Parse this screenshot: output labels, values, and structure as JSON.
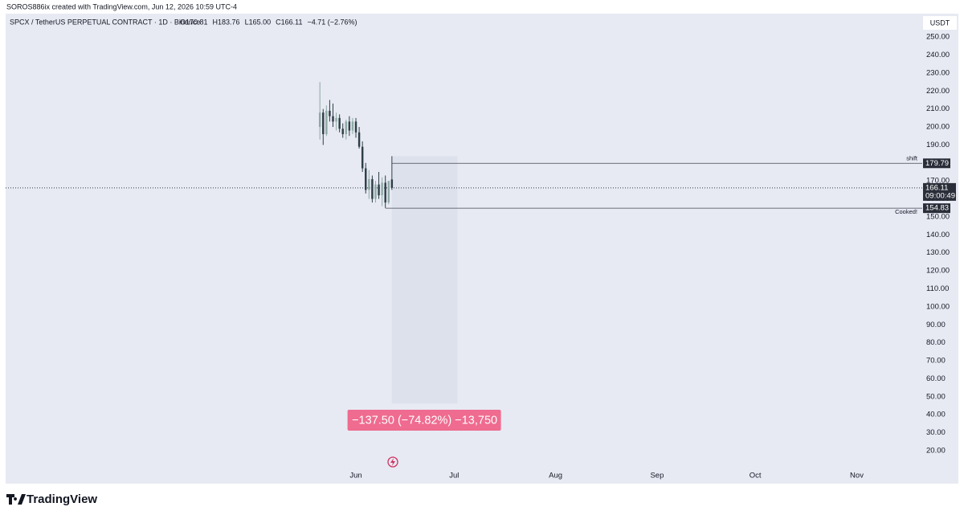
{
  "header": "SOROS886ix created with TradingView.com, Jun 12, 2026 10:59 UTC-4",
  "footer": "TradingView",
  "chart_data": {
    "type": "candlestick",
    "title": "SPCX / TetherUS PERPETUAL CONTRACT · 1D · Binance",
    "legend_ohlc": [
      "O170.81",
      "H183.76",
      "L165.00",
      "C166.11",
      "−4.71 (−2.76%)"
    ],
    "currency": "USDT",
    "x": [
      -11,
      -10,
      -9,
      -8,
      -7,
      -6,
      -5,
      -4,
      -3,
      -2,
      -1,
      0,
      1,
      2,
      3,
      4,
      5,
      6,
      7,
      8,
      9,
      10,
      11
    ],
    "open": [
      200,
      208,
      196,
      209,
      206,
      203,
      205,
      199,
      196,
      203,
      198,
      203,
      197,
      189,
      177,
      165,
      171,
      160,
      168,
      162,
      169,
      158,
      170.81
    ],
    "high": [
      225,
      210,
      212,
      215,
      213,
      208,
      207,
      202,
      204,
      206,
      205,
      205,
      200,
      192,
      180,
      176,
      173,
      170,
      175,
      172,
      173,
      170,
      183.76
    ],
    "low": [
      193,
      190,
      195,
      203,
      200,
      198,
      197,
      194,
      193,
      195,
      196,
      194,
      188,
      175,
      163,
      160,
      158,
      158,
      160,
      156,
      155,
      157,
      165
    ],
    "close": [
      208,
      196,
      209,
      206,
      203,
      205,
      199,
      196,
      203,
      198,
      203,
      197,
      189,
      177,
      165,
      171,
      160,
      168,
      162,
      169,
      158,
      170,
      166.11
    ],
    "up_color": "#8fa9a5",
    "down_color": "#2f3e46",
    "xlim": [
      -107,
      173
    ],
    "xticks": [
      {
        "value": 0,
        "label": "Jun"
      },
      {
        "value": 30,
        "label": "Jul"
      },
      {
        "value": 61,
        "label": "Aug"
      },
      {
        "value": 92,
        "label": "Sep"
      },
      {
        "value": 122,
        "label": "Oct"
      },
      {
        "value": 153,
        "label": "Nov"
      }
    ],
    "ylim": [
      11.5,
      263
    ],
    "yticks": [
      {
        "value": 20,
        "label": "20.00"
      },
      {
        "value": 30,
        "label": "30.00"
      },
      {
        "value": 40,
        "label": "40.00"
      },
      {
        "value": 50,
        "label": "50.00"
      },
      {
        "value": 60,
        "label": "60.00"
      },
      {
        "value": 70,
        "label": "70.00"
      },
      {
        "value": 80,
        "label": "80.00"
      },
      {
        "value": 90,
        "label": "90.00"
      },
      {
        "value": 100,
        "label": "100.00"
      },
      {
        "value": 110,
        "label": "110.00"
      },
      {
        "value": 120,
        "label": "120.00"
      },
      {
        "value": 130,
        "label": "130.00"
      },
      {
        "value": 140,
        "label": "140.00"
      },
      {
        "value": 150,
        "label": "150.00"
      },
      {
        "value": 160,
        "label": "160.00"
      },
      {
        "value": 170,
        "label": "170.00"
      },
      {
        "value": 180,
        "label": "180.00"
      },
      {
        "value": 190,
        "label": "190.00"
      },
      {
        "value": 200,
        "label": "200.00"
      },
      {
        "value": 210,
        "label": "210.00"
      },
      {
        "value": 220,
        "label": "220.00"
      },
      {
        "value": 230,
        "label": "230.00"
      },
      {
        "value": 240,
        "label": "240.00"
      },
      {
        "value": 250,
        "label": "250.00"
      }
    ],
    "last_price": {
      "value": 166.11,
      "countdown": "09:00:49"
    },
    "hlines": [
      {
        "value": 179.79,
        "label": "shift",
        "x_start": 11
      },
      {
        "value": 154.83,
        "label": "Cooked!",
        "x_start": 9
      }
    ],
    "measure": {
      "from": 183.76,
      "to": 46.26,
      "x_start": 11,
      "x_end": 31,
      "label": "−137.50 (−74.82%) −13,750",
      "color": "#ef6b8f"
    }
  }
}
